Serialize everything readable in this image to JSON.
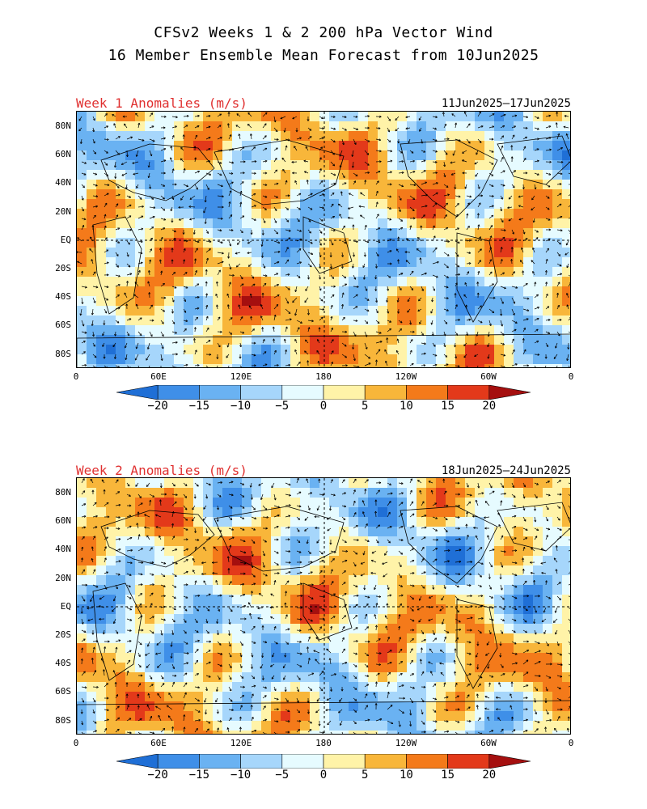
{
  "header": {
    "title_line1": "CFSv2 Weeks 1 & 2 200 hPa Vector Wind",
    "title_line2": "16 Member Ensemble Mean Forecast from 10Jun2025"
  },
  "panels": [
    {
      "title": "Week 1 Anomalies (m/s)",
      "date_range": "11Jun2025—17Jun2025"
    },
    {
      "title": "Week 2 Anomalies (m/s)",
      "date_range": "18Jun2025—24Jun2025"
    }
  ],
  "axes": {
    "lat_labels": [
      "80N",
      "60N",
      "40N",
      "20N",
      "EQ",
      "20S",
      "40S",
      "60S",
      "80S"
    ],
    "lon_labels": [
      "0",
      "60E",
      "120E",
      "180",
      "120W",
      "60W",
      "0"
    ]
  },
  "colorbar": {
    "labels": [
      "−20",
      "−15",
      "−10",
      "−5",
      "0",
      "5",
      "10",
      "15",
      "20"
    ],
    "colors": [
      "#1f6fd6",
      "#3f8fe8",
      "#6ab2f2",
      "#a6d6fb",
      "#e6fbff",
      "#fff3a8",
      "#f8b63a",
      "#f47a1a",
      "#e3391a",
      "#a50f0f"
    ]
  }
}
